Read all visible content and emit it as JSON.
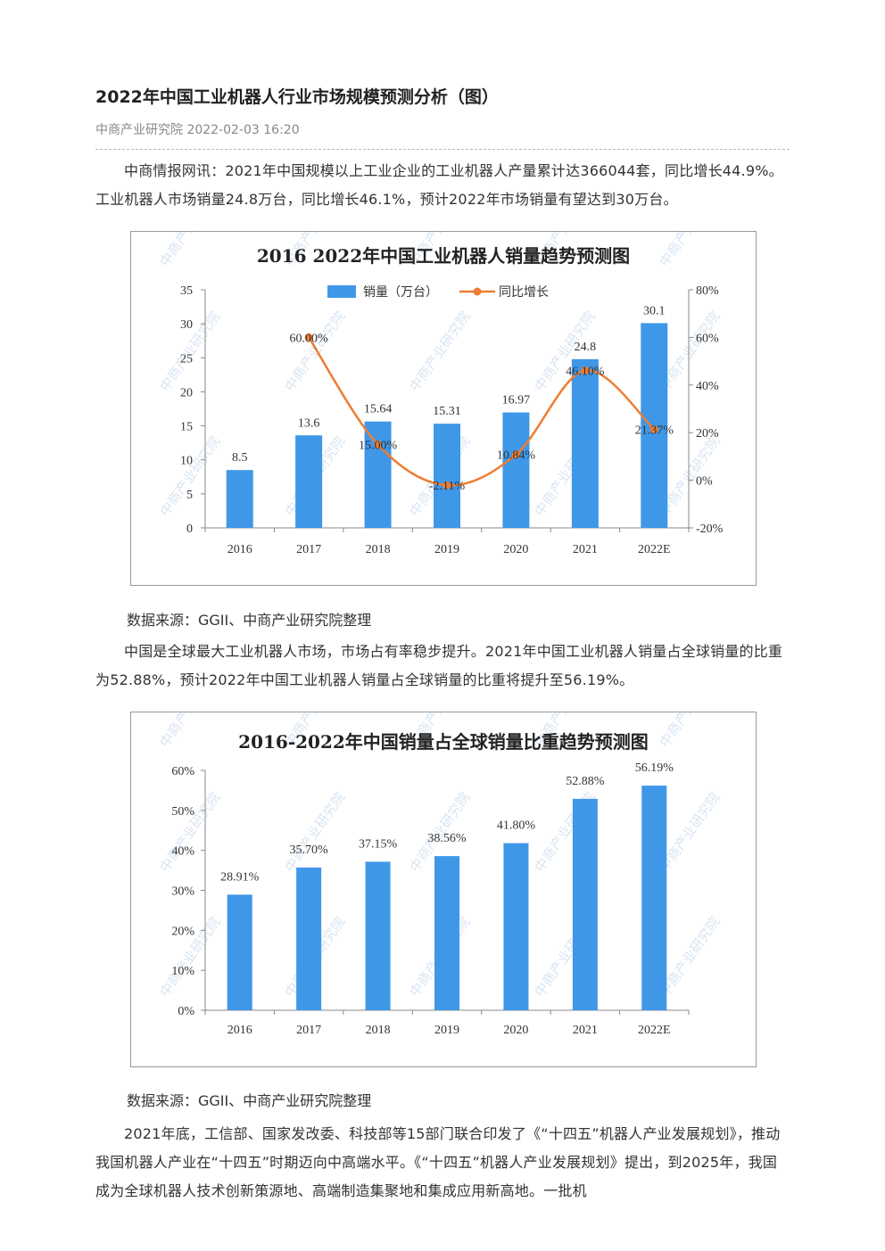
{
  "article": {
    "title": "2022年中国工业机器人行业市场规模预测分析（图）",
    "meta": "中商产业研究院 2022-02-03 16:20",
    "para1": "中商情报网讯：2021年中国规模以上工业企业的工业机器人产量累计达366044套，同比增长44.9%。工业机器人市场销量24.8万台，同比增长46.1%，预计2022年市场销量有望达到30万台。",
    "source1": "数据来源：GGII、中商产业研究院整理",
    "para2": "中国是全球最大工业机器人市场，市场占有率稳步提升。2021年中国工业机器人销量占全球销量的比重为52.88%，预计2022年中国工业机器人销量占全球销量的比重将提升至56.19%。",
    "source2": "数据来源：GGII、中商产业研究院整理",
    "para3": "2021年底，工信部、国家发改委、科技部等15部门联合印发了《“十四五”机器人产业发展规划》，推动我国机器人产业在“十四五”时期迈向中高端水平。《“十四五”机器人产业发展规划》提出，到2025年，我国成为全球机器人技术创新策源地、高端制造集聚地和集成应用新高地。一批机"
  },
  "watermark": "中商产业研究院",
  "colors": {
    "bar": "#3f97e8",
    "line": "#ed7d31",
    "axis": "#888888"
  },
  "chart_data": [
    {
      "type": "bar+line",
      "title": "2016  2022年中国工业机器人销量趋势预测图",
      "categories": [
        "2016",
        "2017",
        "2018",
        "2019",
        "2020",
        "2021",
        "2022E"
      ],
      "series": [
        {
          "name": "销量（万台）",
          "type": "bar",
          "axis": "left",
          "values": [
            8.5,
            13.6,
            15.64,
            15.31,
            16.97,
            24.8,
            30.1
          ],
          "labels": [
            "8.5",
            "13.6",
            "15.64",
            "15.31",
            "16.97",
            "24.8",
            "30.1"
          ]
        },
        {
          "name": "同比增长",
          "type": "line",
          "axis": "right",
          "points": [
            [
              1,
              60.0
            ],
            [
              2,
              15.0
            ],
            [
              3,
              -2.11
            ],
            [
              4,
              10.84
            ],
            [
              5,
              46.1
            ],
            [
              6,
              21.37
            ]
          ],
          "labels": [
            "60.00%",
            "15.00%",
            "-2.11%",
            "10.84%",
            "46.10%",
            "21.37%"
          ]
        }
      ],
      "ylim_left": [
        0,
        35
      ],
      "yticks_left": [
        "0",
        "5",
        "10",
        "15",
        "20",
        "25",
        "30",
        "35"
      ],
      "ylim_right": [
        -20,
        80
      ],
      "yticks_right": [
        "-20%",
        "0%",
        "20%",
        "40%",
        "60%",
        "80%"
      ],
      "legend": "top-center",
      "grid": false
    },
    {
      "type": "bar",
      "title": "2016-2022年中国销量占全球销量比重趋势预测图",
      "categories": [
        "2016",
        "2017",
        "2018",
        "2019",
        "2020",
        "2021",
        "2022E"
      ],
      "values": [
        28.91,
        35.7,
        37.15,
        38.56,
        41.8,
        52.88,
        56.19
      ],
      "labels": [
        "28.91%",
        "35.70%",
        "37.15%",
        "38.56%",
        "41.80%",
        "52.88%",
        "56.19%"
      ],
      "ylim": [
        0,
        60
      ],
      "yticks": [
        "0%",
        "10%",
        "20%",
        "30%",
        "40%",
        "50%",
        "60%"
      ],
      "grid": false
    }
  ]
}
